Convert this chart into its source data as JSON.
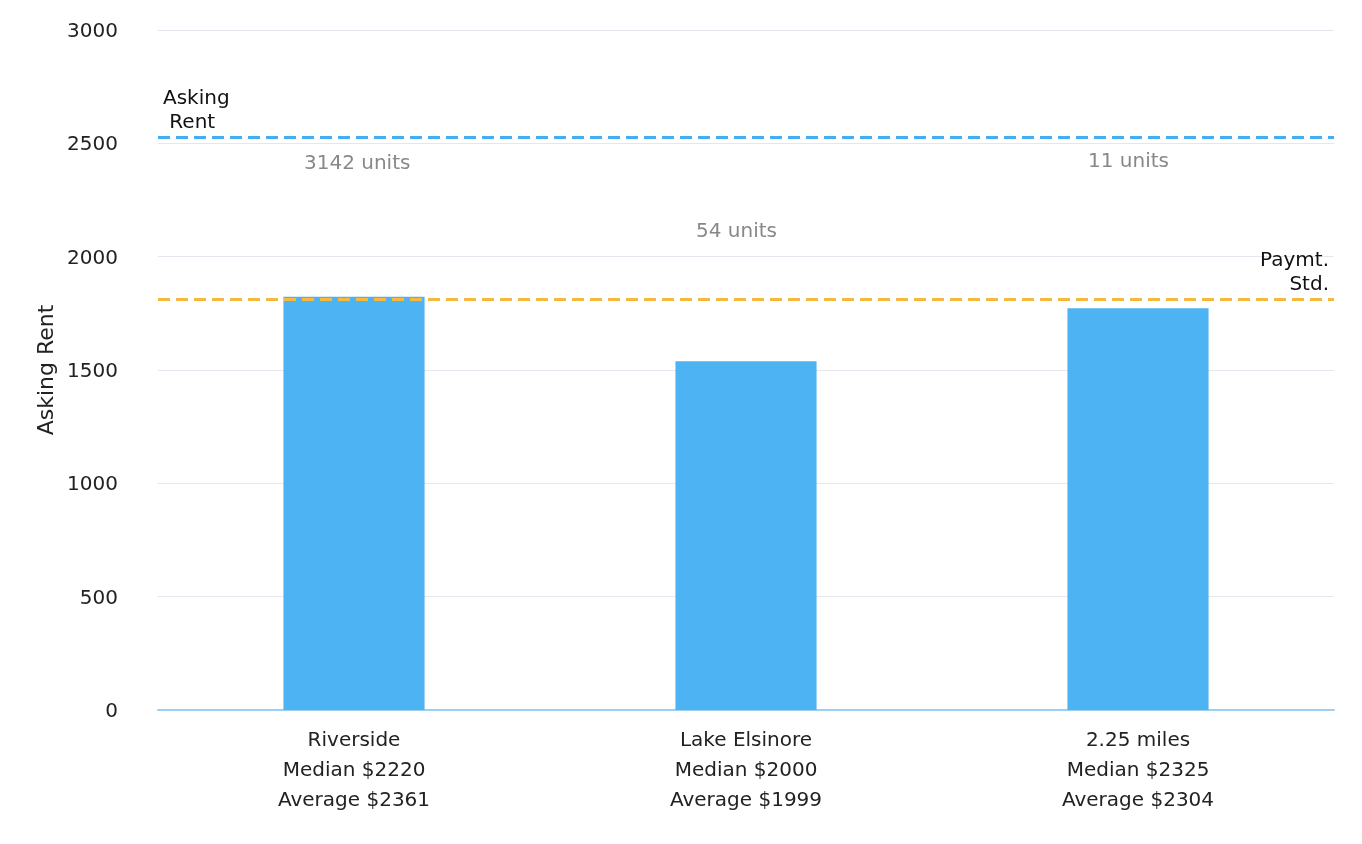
{
  "chart_data": {
    "type": "bar",
    "ylabel": "Asking Rent",
    "categories": [
      "Riverside\nMedian $2220\nAverage $2361",
      "Lake Elsinore\nMedian $2000\nAverage $1999",
      "2.25 miles\nMedian $2325\nAverage $2304"
    ],
    "values": [
      1823,
      1539,
      1772
    ],
    "color": "#4db3f2",
    "ylim": [
      0,
      3000
    ],
    "yticks": [
      0,
      500,
      1000,
      1500,
      2000,
      2500,
      3000
    ],
    "grid": "y",
    "ref_lines": [
      {
        "axis": "y",
        "value": 2525,
        "label": "Asking Rent",
        "color": "#45aef0",
        "line_style": "dashed"
      },
      {
        "axis": "y",
        "value": 1810,
        "label": "Paymt. Std.",
        "color": "#f5b940",
        "line_style": "dashed"
      }
    ],
    "annotations": [
      "3142 units",
      "54 units",
      "11 units"
    ]
  }
}
